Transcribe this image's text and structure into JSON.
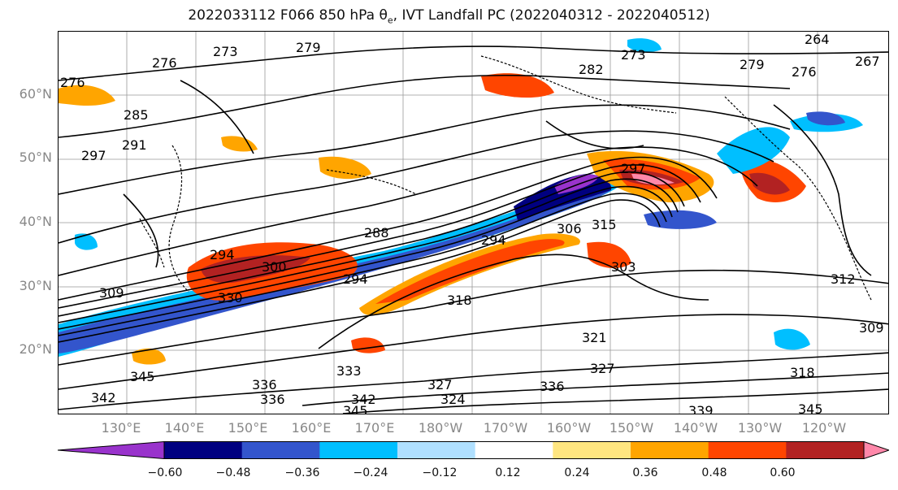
{
  "title": {
    "main": "2022033112 F066 850 hPa θ",
    "subscript": "e",
    "suffix": ", IVT Landfall PC (2022040312 - 2022040512)"
  },
  "lat_labels": [
    "60°N",
    "50°N",
    "40°N",
    "30°N",
    "20°N"
  ],
  "lon_labels": [
    "130°E",
    "140°E",
    "150°E",
    "160°E",
    "170°E",
    "180°W",
    "170°W",
    "160°W",
    "150°W",
    "140°W",
    "130°W",
    "120°W"
  ],
  "contour_labels": [
    "276",
    "276",
    "273",
    "279",
    "264",
    "267",
    "282",
    "273",
    "276",
    "279",
    "285",
    "291",
    "297",
    "288",
    "294",
    "300",
    "306",
    "315",
    "297",
    "303",
    "294",
    "294",
    "309",
    "330",
    "318",
    "321",
    "327",
    "312",
    "309",
    "318",
    "336",
    "333",
    "336",
    "342",
    "345",
    "339",
    "345",
    "345",
    "342",
    "327",
    "324",
    "336"
  ],
  "colorbar": {
    "colors": [
      "#9933cc",
      "#000080",
      "#3355cc",
      "#00bfff",
      "#b0e0ff",
      "#ffffff",
      "#ffe680",
      "#ffa500",
      "#ff4500",
      "#b22222",
      "#ff88aa"
    ],
    "ticks": [
      "−0.60",
      "−0.48",
      "−0.36",
      "−0.24",
      "−0.12",
      "0.12",
      "0.24",
      "0.36",
      "0.48",
      "0.60"
    ]
  },
  "colors": {
    "negative_strong": "#000080",
    "negative_mid": "#3355cc",
    "negative_light": "#00bfff",
    "positive_light": "#ffa500",
    "positive_mid": "#ff4500",
    "positive_strong": "#b22222",
    "positive_max": "#ff88aa"
  }
}
